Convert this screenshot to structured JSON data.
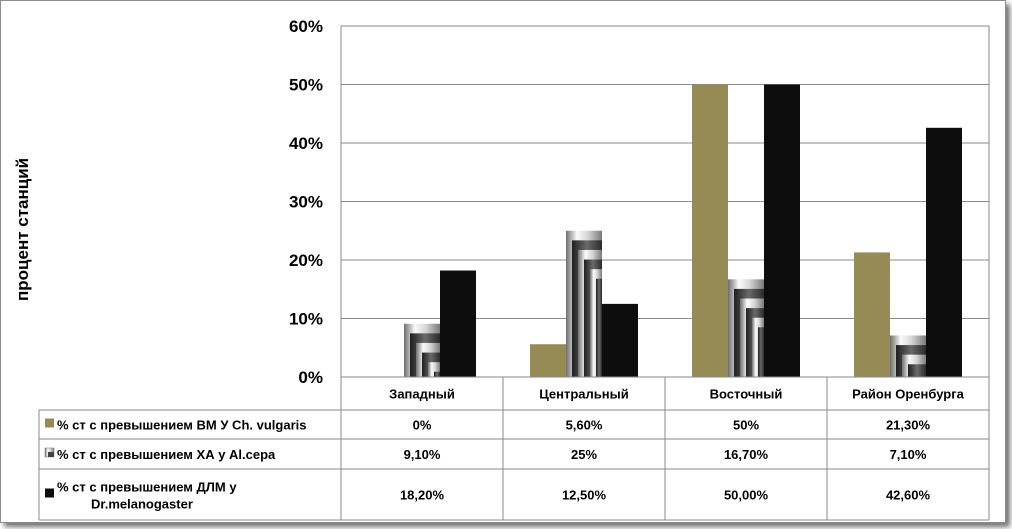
{
  "chart_data": {
    "type": "bar",
    "ylabel": "процент станций",
    "ylim": [
      0,
      60
    ],
    "yticks": [
      "0%",
      "10%",
      "20%",
      "30%",
      "40%",
      "50%",
      "60%"
    ],
    "categories": [
      "Западный",
      "Центральный",
      "Восточный",
      "Район Оренбурга"
    ],
    "grid": true,
    "legend": "data-table-left",
    "series": [
      {
        "name_lines": [
          "% ст с  превышением ВМ У Ch. vulgaris"
        ],
        "color": "#968a55",
        "fill": "solid-olive",
        "values": [
          0,
          5.6,
          50,
          21.3
        ],
        "labels": [
          "0%",
          "5,60%",
          "50%",
          "21,30%"
        ]
      },
      {
        "name_lines": [
          "% ст с превышением ХА у Al.cepa"
        ],
        "color": "#c0c0c0",
        "fill": "nested-gradient-silver",
        "values": [
          9.1,
          25,
          16.7,
          7.1
        ],
        "labels": [
          "9,10%",
          "25%",
          "16,70%",
          "7,10%"
        ]
      },
      {
        "name_lines": [
          "% ст с  превышением ДЛМ у",
          "Dr.melanogaster"
        ],
        "color": "#0d0d0d",
        "fill": "solid-black",
        "values": [
          18.2,
          12.5,
          50,
          42.6
        ],
        "labels": [
          "18,20%",
          "12,50%",
          "50,00%",
          "42,60%"
        ]
      }
    ]
  }
}
